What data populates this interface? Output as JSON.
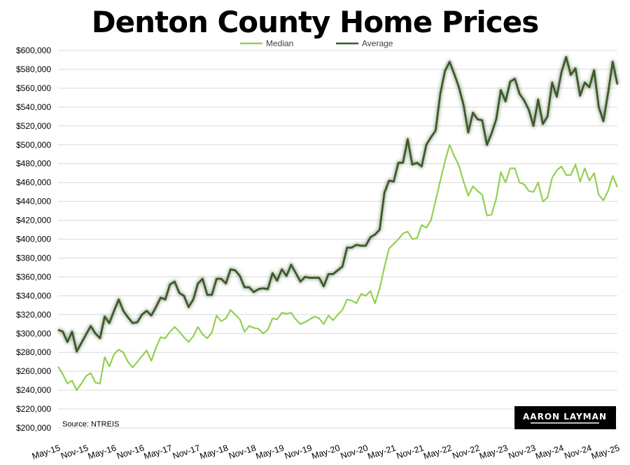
{
  "chart_data": {
    "type": "line",
    "title": "Denton County Home Prices",
    "source": "Source: NTREIS",
    "logo_text": "AARON LAYMAN",
    "ylim": [
      200000,
      600000
    ],
    "y_step": 20000,
    "y_tick_labels": [
      "$200,000",
      "$220,000",
      "$240,000",
      "$260,000",
      "$280,000",
      "$300,000",
      "$320,000",
      "$340,000",
      "$360,000",
      "$380,000",
      "$400,000",
      "$420,000",
      "$440,000",
      "$460,000",
      "$480,000",
      "$500,000",
      "$520,000",
      "$540,000",
      "$560,000",
      "$580,000",
      "$600,000"
    ],
    "x_tick_labels": [
      "May-15",
      "Nov-15",
      "May-16",
      "Nov-16",
      "May-17",
      "Nov-17",
      "May-18",
      "Nov-18",
      "May-19",
      "Nov-19",
      "May-20",
      "Nov-20",
      "May-21",
      "Nov-21",
      "May-22",
      "Nov-22",
      "May-23",
      "Nov-23",
      "May-24",
      "Nov-24",
      "May-25"
    ],
    "x_tick_step_months": 6,
    "legend_position": "top-center",
    "grid": "horizontal",
    "series": [
      {
        "name": "Median",
        "color": "#92d050",
        "values": [
          265000,
          257000,
          247000,
          250000,
          240000,
          247000,
          255000,
          258000,
          248000,
          247000,
          275000,
          265000,
          278000,
          283000,
          280000,
          270000,
          264000,
          270000,
          276000,
          282000,
          271000,
          285000,
          296000,
          295000,
          302000,
          307000,
          302000,
          296000,
          291000,
          297000,
          307000,
          299000,
          295000,
          301000,
          319000,
          313000,
          316000,
          325000,
          320000,
          315000,
          302000,
          308000,
          306000,
          305000,
          300000,
          304000,
          316000,
          315000,
          322000,
          321000,
          322000,
          315000,
          310000,
          312000,
          315000,
          318000,
          316000,
          310000,
          319000,
          314000,
          320000,
          325000,
          336000,
          335000,
          332000,
          342000,
          340000,
          345000,
          332000,
          348000,
          370000,
          390000,
          395000,
          400000,
          406000,
          408000,
          400000,
          401000,
          415000,
          412000,
          420000,
          441000,
          462000,
          482000,
          500000,
          488000,
          478000,
          461000,
          446000,
          456000,
          451000,
          447000,
          425000,
          426000,
          443000,
          471000,
          460000,
          475000,
          475000,
          460000,
          458000,
          451000,
          450000,
          460000,
          440000,
          444000,
          465000,
          473000,
          477000,
          468000,
          468000,
          479000,
          461000,
          475000,
          462000,
          470000,
          447000,
          441000,
          451000,
          467000,
          455000
        ]
      },
      {
        "name": "Average",
        "color": "#3b5a2a",
        "values": [
          304000,
          302000,
          291000,
          302000,
          281000,
          290000,
          299000,
          308000,
          300000,
          295000,
          318000,
          311000,
          324000,
          336000,
          324000,
          317000,
          311000,
          312000,
          320000,
          324000,
          319000,
          328000,
          338000,
          336000,
          352000,
          355000,
          343000,
          340000,
          328000,
          336000,
          353000,
          358000,
          341000,
          341000,
          358000,
          358000,
          353000,
          368000,
          367000,
          361000,
          349000,
          349000,
          344000,
          347000,
          348000,
          347000,
          364000,
          356000,
          368000,
          361000,
          373000,
          364000,
          355000,
          360000,
          359000,
          359000,
          359000,
          350000,
          363000,
          363000,
          367000,
          371000,
          391000,
          391000,
          394000,
          393000,
          393000,
          402000,
          405000,
          410000,
          449000,
          462000,
          461000,
          481000,
          481000,
          506000,
          479000,
          481000,
          477000,
          500000,
          508000,
          515000,
          554000,
          578000,
          588000,
          575000,
          561000,
          542000,
          513000,
          534000,
          527000,
          526000,
          500000,
          512000,
          527000,
          558000,
          546000,
          567000,
          570000,
          554000,
          547000,
          537000,
          520000,
          548000,
          522000,
          530000,
          566000,
          551000,
          577000,
          593000,
          574000,
          581000,
          552000,
          566000,
          561000,
          579000,
          540000,
          525000,
          555000,
          588000,
          564000
        ]
      }
    ]
  }
}
